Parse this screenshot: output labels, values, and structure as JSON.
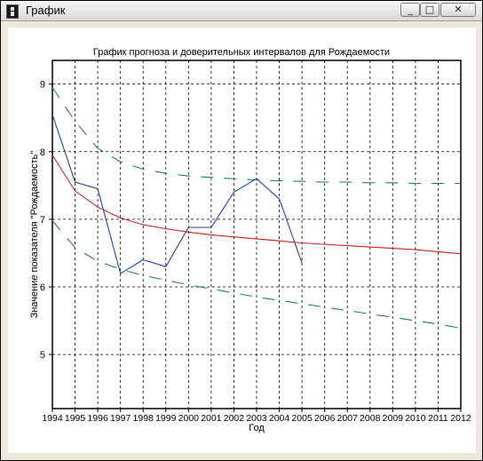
{
  "window": {
    "title": "График",
    "minimize_label": "_",
    "maximize_label": "□",
    "close_label": "✕"
  },
  "icons": [
    "app-icon",
    "minimize-icon",
    "maximize-icon",
    "close-icon"
  ],
  "chart_data": {
    "type": "line",
    "title": "График прогноза и доверительных интервалов для Рождаемости",
    "xlabel": "Год",
    "ylabel": "Значение показателя \"Рождаемость\"",
    "categories": [
      "1994",
      "1995",
      "1996",
      "1997",
      "1998",
      "1999",
      "2000",
      "2001",
      "2002",
      "2003",
      "2004",
      "2005",
      "2006",
      "2007",
      "2008",
      "2009",
      "2010",
      "2011",
      "2012"
    ],
    "y_ticks": [
      5,
      6,
      7,
      8,
      9
    ],
    "ylim": [
      4.2,
      9.35
    ],
    "grid": true,
    "series": [
      {
        "role": "actual",
        "color": "#1f3fc4",
        "style": "solid",
        "values": [
          8.55,
          7.55,
          7.45,
          6.2,
          6.4,
          6.3,
          6.88,
          6.88,
          7.4,
          7.6,
          7.3,
          6.35,
          null,
          null,
          null,
          null,
          null,
          null,
          null
        ]
      },
      {
        "role": "forecast",
        "color": "#d42020",
        "style": "solid",
        "values": [
          7.95,
          7.42,
          7.18,
          7.02,
          6.92,
          6.86,
          6.81,
          6.77,
          6.74,
          6.71,
          6.68,
          6.65,
          6.63,
          6.61,
          6.59,
          6.57,
          6.55,
          6.52,
          6.49
        ]
      },
      {
        "role": "upper-bound",
        "color": "#1a8a3a",
        "style": "dashed",
        "values": [
          8.95,
          8.45,
          8.05,
          7.85,
          7.74,
          7.68,
          7.64,
          7.62,
          7.6,
          7.58,
          7.57,
          7.56,
          7.55,
          7.55,
          7.54,
          7.54,
          7.53,
          7.53,
          7.53
        ]
      },
      {
        "role": "lower-bound",
        "color": "#1a8a3a",
        "style": "dashed",
        "values": [
          6.98,
          6.58,
          6.38,
          6.26,
          6.17,
          6.1,
          6.03,
          5.97,
          5.91,
          5.85,
          5.8,
          5.75,
          5.7,
          5.65,
          5.6,
          5.55,
          5.5,
          5.45,
          5.39
        ]
      }
    ]
  }
}
